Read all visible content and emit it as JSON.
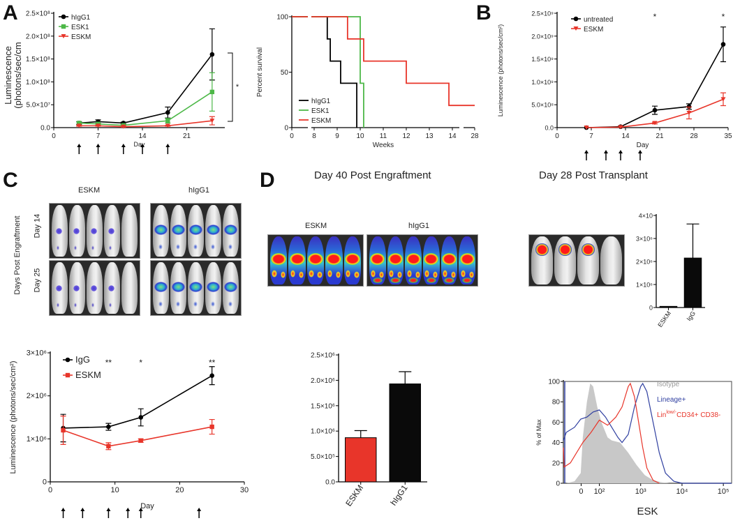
{
  "panels": {
    "A": "A",
    "B": "B",
    "C": "C",
    "D": "D"
  },
  "panel_C_images": {
    "col1": "ESKM",
    "col2": "hIgG1",
    "row1": "Day 14",
    "row2": "Day 25",
    "side": "Days Post Engraftment"
  },
  "panel_D_images": {
    "title_left": "Day 40 Post Engraftment",
    "title_right": "Day 28 Post Transplant",
    "col1": "ESKM",
    "col2": "hIgG1"
  },
  "colors": {
    "black": "#000000",
    "green": "#4db848",
    "red": "#e8352a",
    "blue": "#2f3fa0",
    "gray": "#c8c8c8"
  },
  "chart_data": [
    {
      "id": "A1",
      "type": "line",
      "panel": "A",
      "title": "",
      "xlabel": "Day",
      "ylabel": "Luminescence (photons/sec/cm",
      "xlim": [
        0,
        27
      ],
      "ylim": [
        0,
        250000000
      ],
      "xticks": [
        0,
        7,
        14,
        21
      ],
      "yticks": [
        {
          "v": 0,
          "label": "0.0"
        },
        {
          "v": 50000000,
          "label": "5.0×10⁷"
        },
        {
          "v": 100000000,
          "label": "1.0×10⁸"
        },
        {
          "v": 150000000,
          "label": "1.5×10⁸"
        },
        {
          "v": 200000000,
          "label": "2.0×10⁸"
        },
        {
          "v": 250000000,
          "label": "2.5×10⁸"
        }
      ],
      "legend": "top-left",
      "significance": "*",
      "treatment_days": [
        4,
        7,
        11,
        14,
        18
      ],
      "series": [
        {
          "name": "hIgG1",
          "color": "#000000",
          "marker": "circle",
          "x": [
            4,
            7,
            11,
            18,
            25
          ],
          "y": [
            10000000,
            13000000,
            10000000,
            33000000,
            160000000
          ],
          "err": [
            3000000,
            4000000,
            2000000,
            12000000,
            56000000
          ]
        },
        {
          "name": "ESK1",
          "color": "#4db848",
          "marker": "square",
          "x": [
            4,
            7,
            11,
            18,
            25
          ],
          "y": [
            10000000,
            8000000,
            5000000,
            15000000,
            78000000
          ],
          "err": [
            2000000,
            2000000,
            2000000,
            5000000,
            42000000
          ]
        },
        {
          "name": "ESKM",
          "color": "#e8352a",
          "marker": "triangle",
          "x": [
            4,
            7,
            11,
            18,
            25
          ],
          "y": [
            4000000,
            4000000,
            2000000,
            4000000,
            15000000
          ],
          "err": [
            1000000,
            1000000,
            1000000,
            1000000,
            9000000
          ]
        }
      ]
    },
    {
      "id": "A2",
      "type": "line",
      "panel": "A",
      "title": "",
      "xlabel": "Weeks",
      "ylabel": "Percent survival",
      "xlim": [
        0,
        28
      ],
      "ylim": [
        0,
        100
      ],
      "xticks": [
        0,
        8,
        9,
        10,
        11,
        12,
        13,
        14,
        28
      ],
      "yticks": [
        {
          "v": 0,
          "label": "0"
        },
        {
          "v": 50,
          "label": "50"
        },
        {
          "v": 100,
          "label": "100"
        }
      ],
      "legend": "bottom-left",
      "series": [
        {
          "name": "hIgG1",
          "color": "#000000",
          "x": [
            0,
            8.57,
            8.57,
            8.7,
            8.7,
            9.15,
            9.15,
            9.85,
            9.85
          ],
          "y": [
            100,
            100,
            80,
            80,
            60,
            60,
            40,
            40,
            0
          ]
        },
        {
          "name": "ESK1",
          "color": "#4db848",
          "x": [
            0,
            10.0,
            10.0,
            10.15,
            10.15
          ],
          "y": [
            100,
            100,
            40,
            40,
            0
          ]
        },
        {
          "name": "ESKM",
          "color": "#e8352a",
          "x": [
            0,
            9.45,
            9.45,
            10.15,
            10.15,
            12.0,
            12.0,
            13.85,
            13.85,
            28
          ],
          "y": [
            100,
            100,
            80,
            80,
            60,
            60,
            40,
            40,
            20,
            20
          ]
        }
      ]
    },
    {
      "id": "B1",
      "type": "line",
      "panel": "B",
      "xlabel": "Day",
      "ylabel": "Luminescence (photons/sec/cm²)",
      "xlim": [
        0,
        35
      ],
      "ylim": [
        0,
        2500000000
      ],
      "xticks": [
        0,
        7,
        14,
        21,
        28,
        35
      ],
      "yticks": [
        {
          "v": 0,
          "label": "0.0"
        },
        {
          "v": 500000000,
          "label": "5.0×10⁸"
        },
        {
          "v": 1000000000,
          "label": "1.0×10⁹"
        },
        {
          "v": 1500000000,
          "label": "1.5×10⁹"
        },
        {
          "v": 2000000000,
          "label": "2.0×10⁹"
        },
        {
          "v": 2500000000,
          "label": "2.5×10⁹"
        }
      ],
      "legend": "top-left",
      "treatment_days": [
        6,
        10,
        13,
        17
      ],
      "annotations": [
        {
          "x": 20,
          "text": "*"
        },
        {
          "x": 34,
          "text": "*"
        }
      ],
      "series": [
        {
          "name": "untreated",
          "color": "#000000",
          "marker": "circle",
          "x": [
            6,
            13,
            20,
            27,
            34
          ],
          "y": [
            0,
            20000000,
            380000000,
            460000000,
            1820000000
          ],
          "err": [
            0,
            10000000,
            90000000,
            60000000,
            380000000
          ]
        },
        {
          "name": "ESKM",
          "color": "#e8352a",
          "marker": "triangle",
          "x": [
            6,
            13,
            20,
            27,
            34
          ],
          "y": [
            0,
            10000000,
            100000000,
            320000000,
            620000000
          ],
          "err": [
            0,
            5000000,
            20000000,
            130000000,
            140000000
          ]
        }
      ]
    },
    {
      "id": "C1",
      "type": "line",
      "panel": "C",
      "xlabel": "Day",
      "ylabel": "Luminescence (photons/sec/cm²)",
      "xlim": [
        0,
        30
      ],
      "ylim": [
        0,
        3000000
      ],
      "xticks": [
        0,
        10,
        20,
        30
      ],
      "yticks": [
        {
          "v": 0,
          "label": "0"
        },
        {
          "v": 1000000,
          "label": "1×10⁶"
        },
        {
          "v": 2000000,
          "label": "2×10⁶"
        },
        {
          "v": 3000000,
          "label": "3×10⁶"
        }
      ],
      "legend": "top-left",
      "treatment_days": [
        2,
        5,
        9,
        12,
        14,
        23
      ],
      "annotations": [
        {
          "x": 9,
          "text": "**"
        },
        {
          "x": 14,
          "text": "*"
        },
        {
          "x": 25,
          "text": "**"
        }
      ],
      "series": [
        {
          "name": "IgG",
          "color": "#000000",
          "marker": "circle",
          "x": [
            2,
            9,
            14,
            25
          ],
          "y": [
            1250000,
            1280000,
            1500000,
            2470000
          ],
          "err": [
            320000,
            80000,
            200000,
            210000
          ]
        },
        {
          "name": "ESKM",
          "color": "#e8352a",
          "marker": "square",
          "x": [
            2,
            9,
            14,
            25
          ],
          "y": [
            1200000,
            830000,
            960000,
            1280000
          ],
          "err": [
            330000,
            80000,
            40000,
            170000
          ]
        }
      ]
    },
    {
      "id": "D1",
      "type": "bar",
      "panel": "D",
      "categories": [
        "ESKM",
        "hIgG1"
      ],
      "values": [
        870000,
        1930000
      ],
      "err": [
        140000,
        240000
      ],
      "colors": [
        "#e8352a",
        "#0a0a0a"
      ],
      "ylim": [
        0,
        2500000
      ],
      "yticks": [
        {
          "v": 0,
          "label": "0.0"
        },
        {
          "v": 500000,
          "label": "5.0×10⁵"
        },
        {
          "v": 1000000,
          "label": "1.0×10⁶"
        },
        {
          "v": 1500000,
          "label": "1.5×10⁶"
        },
        {
          "v": 2000000,
          "label": "2.0×10⁶"
        },
        {
          "v": 2500000,
          "label": "2.5×10⁶"
        }
      ]
    },
    {
      "id": "D2",
      "type": "bar",
      "panel": "D",
      "categories": [
        "ESKM",
        "IgG"
      ],
      "values": [
        50000,
        2150000
      ],
      "err": [
        0,
        1480000
      ],
      "colors": [
        "#0a0a0a",
        "#0a0a0a"
      ],
      "ylim": [
        0,
        4000000
      ],
      "yticks": [
        {
          "v": 0,
          "label": "0"
        },
        {
          "v": 1000000,
          "label": "1×10⁶"
        },
        {
          "v": 2000000,
          "label": "2×10⁶"
        },
        {
          "v": 3000000,
          "label": "3×10⁶"
        },
        {
          "v": 4000000,
          "label": "4×10"
        }
      ]
    },
    {
      "id": "D3",
      "type": "area",
      "panel": "D",
      "xlabel": "ESK",
      "ylabel": "% of Max",
      "ylim": [
        0,
        100
      ],
      "xlim": [
        1.13,
        5.2
      ],
      "xticks": [
        {
          "v": 1.56,
          "label": "0"
        },
        {
          "v": 2,
          "label": "10²"
        },
        {
          "v": 3,
          "label": "10³"
        },
        {
          "v": 4,
          "label": "10⁴"
        },
        {
          "v": 5,
          "label": "10⁵"
        }
      ],
      "yticks": [
        {
          "v": 0,
          "label": "0"
        },
        {
          "v": 20,
          "label": "20"
        },
        {
          "v": 40,
          "label": "40"
        },
        {
          "v": 60,
          "label": "60"
        },
        {
          "v": 80,
          "label": "80"
        },
        {
          "v": 100,
          "label": "100"
        }
      ],
      "legend": "top-right",
      "series": [
        {
          "name": "Isotype",
          "color": "#c8c8c8",
          "fill": true,
          "x": [
            1.2,
            1.4,
            1.55,
            1.6,
            1.7,
            1.78,
            1.85,
            1.95,
            2.05,
            2.1,
            2.2,
            2.3,
            2.5,
            2.7,
            2.9,
            3.1,
            3.3,
            3.5,
            3.7
          ],
          "y": [
            0,
            2,
            10,
            45,
            80,
            98,
            95,
            75,
            60,
            55,
            45,
            42,
            40,
            30,
            18,
            8,
            3,
            1,
            0
          ]
        },
        {
          "name": "Lineage+",
          "color": "#2f3fa0",
          "x": [
            1.13,
            1.2,
            1.4,
            1.55,
            1.7,
            1.85,
            2.0,
            2.15,
            2.3,
            2.45,
            2.55,
            2.7,
            2.85,
            3.0,
            3.05,
            3.15,
            3.3,
            3.45,
            3.6,
            3.8,
            4.0,
            5.2
          ],
          "y": [
            42,
            50,
            55,
            63,
            65,
            70,
            72,
            65,
            55,
            45,
            40,
            48,
            75,
            95,
            98,
            90,
            60,
            30,
            10,
            2,
            0,
            0
          ]
        },
        {
          "name": "Lin",
          "name_sup": "low/-",
          "name_rest": "CD34+ CD38-",
          "color": "#e8352a",
          "x": [
            1.13,
            1.15,
            1.3,
            1.45,
            1.6,
            1.8,
            2.0,
            2.2,
            2.4,
            2.55,
            2.7,
            2.75,
            2.85,
            2.95,
            3.05,
            3.15,
            3.3,
            3.45
          ],
          "y": [
            35,
            16,
            20,
            30,
            40,
            50,
            62,
            57,
            65,
            75,
            95,
            98,
            85,
            60,
            35,
            15,
            3,
            0
          ]
        }
      ]
    }
  ]
}
